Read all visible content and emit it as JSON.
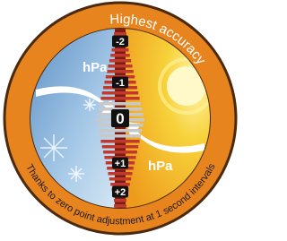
{
  "badge": {
    "title": "Highest accuracy",
    "caption": "Thanks to zero point adjustment at 1 second intervals",
    "left_label": "hPa",
    "right_label": "hPa",
    "scale_labels": [
      "-2",
      "-1",
      "0",
      "+1",
      "+2"
    ]
  }
}
